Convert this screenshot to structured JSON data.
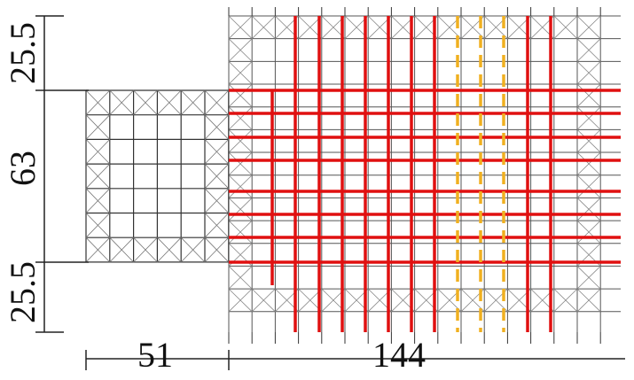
{
  "dimensions": {
    "left": [
      "25.5",
      "63",
      "25.5"
    ],
    "bottom": [
      "51",
      "144"
    ]
  }
}
